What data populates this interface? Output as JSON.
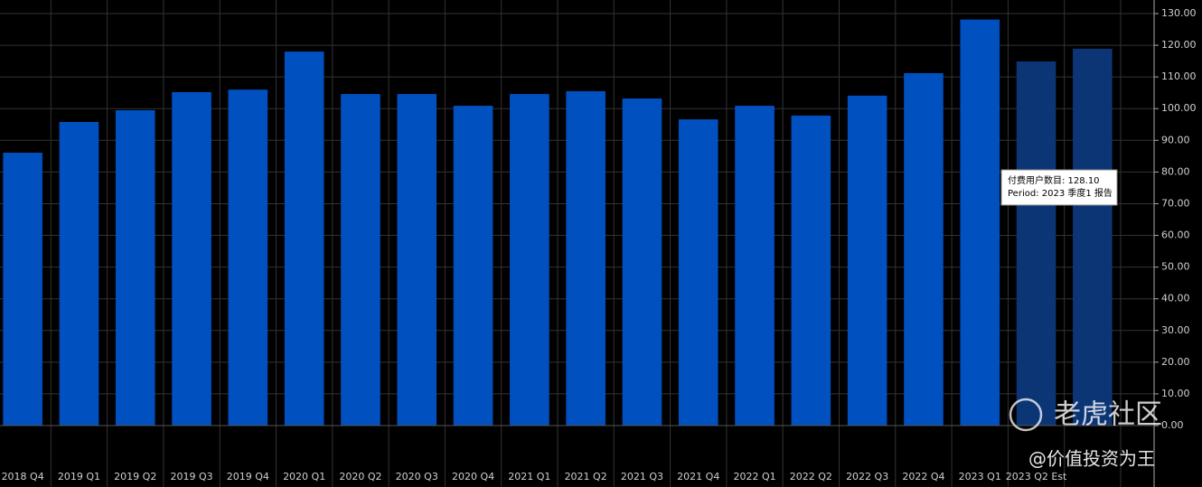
{
  "chart_data": {
    "type": "bar",
    "categories": [
      "2018 Q4",
      "2019 Q1",
      "2019 Q2",
      "2019 Q3",
      "2019 Q4",
      "2020 Q1",
      "2020 Q2",
      "2020 Q3",
      "2020 Q4",
      "2021 Q1",
      "2021 Q2",
      "2021 Q3",
      "2021 Q4",
      "2022 Q1",
      "2022 Q2",
      "2022 Q3",
      "2022 Q4",
      "2023 Q1",
      "2023 Q2 Est",
      null
    ],
    "values": [
      86.1,
      95.8,
      99.5,
      105.2,
      106.0,
      118.0,
      104.6,
      104.6,
      100.9,
      104.6,
      105.5,
      103.2,
      96.6,
      100.9,
      97.8,
      104.1,
      111.2,
      128.1,
      114.9,
      118.9
    ],
    "colors": [
      "#0050c0",
      "#0050c0",
      "#0050c0",
      "#0050c0",
      "#0050c0",
      "#0050c0",
      "#0050c0",
      "#0050c0",
      "#0050c0",
      "#0050c0",
      "#0050c0",
      "#0050c0",
      "#0050c0",
      "#0050c0",
      "#0050c0",
      "#0050c0",
      "#0050c0",
      "#0050c0",
      "#0c3576",
      "#0c3576"
    ],
    "ylim": [
      0,
      130
    ],
    "yticks": [
      {
        "value": 0,
        "label": "0.00"
      },
      {
        "value": 10,
        "label": "10.00"
      },
      {
        "value": 20,
        "label": "20.00"
      },
      {
        "value": 30,
        "label": "30.00"
      },
      {
        "value": 40,
        "label": "40.00"
      },
      {
        "value": 50,
        "label": "50.00"
      },
      {
        "value": 60,
        "label": "60.00"
      },
      {
        "value": 70,
        "label": "70.00"
      },
      {
        "value": 80,
        "label": "80.00"
      },
      {
        "value": 90,
        "label": "90.00"
      },
      {
        "value": 100,
        "label": "100.00"
      },
      {
        "value": 110,
        "label": "110.00"
      },
      {
        "value": 120,
        "label": "120.00"
      },
      {
        "value": 130,
        "label": "130.00"
      }
    ],
    "grid": true,
    "tooltip": [
      "付费用户数目: 128.10",
      "Period: 2023 季度1 报告"
    ],
    "watermarks": [
      "老虎社区",
      "@价值投资为王"
    ]
  }
}
